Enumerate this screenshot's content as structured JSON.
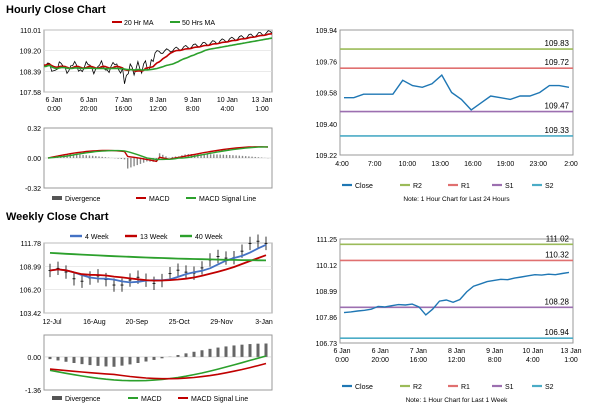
{
  "hourly": {
    "title": "Hourly Close Chart",
    "price": {
      "ylabels": [
        "110.01",
        "109.20",
        "108.39",
        "107.58"
      ],
      "yvals": [
        110.01,
        109.2,
        108.39,
        107.58
      ],
      "xlabels": [
        [
          "6 Jan",
          "0:00"
        ],
        [
          "6 Jan",
          "20:00"
        ],
        [
          "7 Jan",
          "16:00"
        ],
        [
          "8 Jan",
          "12:00"
        ],
        [
          "9 Jan",
          "8:00"
        ],
        [
          "10 Jan",
          "4:00"
        ],
        [
          "13 Jan",
          "1:00"
        ]
      ],
      "legend": [
        "20 Hr MA",
        "50 Hrs MA"
      ],
      "colors": {
        "price": "#000000",
        "ma20": "#c00000",
        "ma50": "#2ca02c"
      }
    },
    "macd": {
      "ylabels": [
        "0.32",
        "0.00",
        "-0.32"
      ],
      "yvals": [
        0.32,
        0.0,
        -0.32
      ],
      "legend": [
        "Divergence",
        "MACD",
        "MACD Signal Line"
      ]
    },
    "close": {
      "ylabels": [
        "109.94",
        "109.76",
        "109.58",
        "109.40",
        "109.22"
      ],
      "yvals": [
        109.94,
        109.76,
        109.58,
        109.4,
        109.22
      ],
      "xlabels": [
        "4:00",
        "7:00",
        "10:00",
        "13:00",
        "16:00",
        "19:00",
        "23:00",
        "2:00"
      ],
      "levels": [
        {
          "name": "R2",
          "value": 109.83,
          "label": "109.83",
          "color": "#9bbb59"
        },
        {
          "name": "R1",
          "value": 109.72,
          "label": "109.72",
          "color": "#e07070"
        },
        {
          "name": "S1",
          "value": 109.47,
          "label": "109.47",
          "color": "#9c6fb0"
        },
        {
          "name": "S2",
          "value": 109.33,
          "label": "109.33",
          "color": "#4bacc6"
        }
      ],
      "series": [
        109.55,
        109.55,
        109.57,
        109.57,
        109.57,
        109.57,
        109.65,
        109.62,
        109.61,
        109.63,
        109.68,
        109.58,
        109.54,
        109.48,
        109.52,
        109.56,
        109.55,
        109.54,
        109.56,
        109.56,
        109.58,
        109.62,
        109.62,
        109.61
      ],
      "legend": [
        "Close",
        "R2",
        "R1",
        "S1",
        "S2"
      ],
      "note": "Note: 1 Hour Chart for Last 24 Hours"
    }
  },
  "weekly": {
    "title": "Weekly Close Chart",
    "price": {
      "ylabels": [
        "111.78",
        "108.99",
        "106.20",
        "103.42"
      ],
      "yvals": [
        111.78,
        108.99,
        106.2,
        103.42
      ],
      "xlabels": [
        "12-Jul",
        "16-Aug",
        "20-Sep",
        "25-Oct",
        "29-Nov",
        "3-Jan"
      ],
      "legend": [
        "4 Week",
        "13 Week",
        "40 Week"
      ],
      "colors": {
        "w4": "#4472c4",
        "w13": "#c00000",
        "w40": "#2ca02c"
      }
    },
    "macd": {
      "ylabels": [
        "0.00",
        "-1.36"
      ],
      "yvals": [
        0.0,
        -1.36
      ],
      "legend": [
        "Divergence",
        "MACD",
        "MACD Signal Line"
      ]
    },
    "close": {
      "ylabels": [
        "111.25",
        "110.12",
        "108.99",
        "107.86",
        "106.73"
      ],
      "yvals": [
        111.25,
        110.12,
        108.99,
        107.86,
        106.73
      ],
      "xlabels": [
        [
          "6 Jan",
          "0:00"
        ],
        [
          "6 Jan",
          "20:00"
        ],
        [
          "7 Jan",
          "16:00"
        ],
        [
          "8 Jan",
          "12:00"
        ],
        [
          "9 Jan",
          "8:00"
        ],
        [
          "10 Jan",
          "4:00"
        ],
        [
          "13 Jan",
          "1:00"
        ]
      ],
      "levels": [
        {
          "name": "R2",
          "value": 111.02,
          "label": "111.02",
          "color": "#9bbb59"
        },
        {
          "name": "R1",
          "value": 110.32,
          "label": "110.32",
          "color": "#e07070"
        },
        {
          "name": "S1",
          "value": 108.28,
          "label": "108.28",
          "color": "#9c6fb0"
        },
        {
          "name": "S2",
          "value": 106.94,
          "label": "106.94",
          "color": "#4bacc6"
        }
      ],
      "series": [
        108.05,
        108.08,
        108.12,
        108.15,
        108.2,
        108.32,
        108.3,
        108.35,
        108.4,
        108.38,
        108.42,
        108.3,
        107.95,
        108.2,
        108.55,
        108.6,
        108.5,
        108.62,
        108.95,
        109.2,
        109.3,
        109.4,
        109.45,
        109.5,
        109.48,
        109.55,
        109.6,
        109.65,
        109.7,
        109.68,
        109.72,
        109.7,
        109.75,
        109.8
      ],
      "legend": [
        "Close",
        "R2",
        "R1",
        "S1",
        "S2"
      ],
      "note": "Note: 1 Hour Chart for Last 1 Week"
    }
  },
  "chart_data": [
    {
      "type": "line",
      "title": "Hourly Close Chart",
      "series": [
        {
          "name": "20 Hr MA"
        },
        {
          "name": "50 Hrs MA"
        }
      ],
      "ylim": [
        107.58,
        110.01
      ]
    },
    {
      "type": "line",
      "title": "",
      "ylim": [
        109.22,
        109.94
      ],
      "x": [
        "4:00",
        "7:00",
        "10:00",
        "13:00",
        "16:00",
        "19:00",
        "23:00",
        "2:00"
      ],
      "series": [
        {
          "name": "Close"
        }
      ],
      "levels": {
        "R2": 109.83,
        "R1": 109.72,
        "S1": 109.47,
        "S2": 109.33
      }
    },
    {
      "type": "line",
      "title": "Weekly Close Chart",
      "series": [
        {
          "name": "4 Week"
        },
        {
          "name": "13 Week"
        },
        {
          "name": "40 Week"
        }
      ],
      "ylim": [
        103.42,
        111.78
      ]
    },
    {
      "type": "line",
      "title": "",
      "ylim": [
        106.73,
        111.25
      ],
      "series": [
        {
          "name": "Close"
        }
      ],
      "levels": {
        "R2": 111.02,
        "R1": 110.32,
        "S1": 108.28,
        "S2": 106.94
      }
    }
  ]
}
